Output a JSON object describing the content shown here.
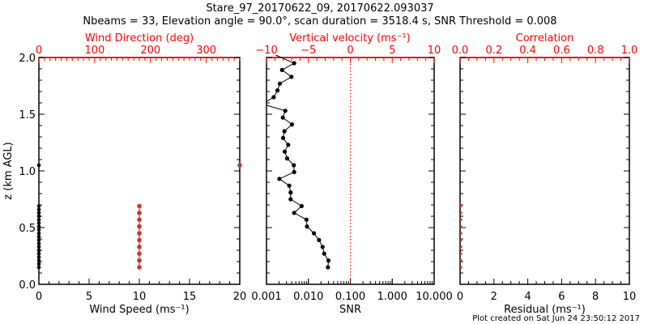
{
  "title": "Stare_97_20170622_09, 20170622.093037",
  "subtitle": "Nbeams = 33, Elevation angle = 90.0°, scan duration = 3518.4 s, SNR Threshold = 0.008",
  "footer": "Plot created on Sat Jun 24 23:50:12 2017",
  "colors": {
    "red": "#ff0000",
    "marker_red": "#c0392b",
    "black": "#000000"
  },
  "chart_data": [
    {
      "type": "scatter",
      "panel": "wind",
      "ylabel": "z (km AGL)",
      "ylim": [
        0,
        2
      ],
      "yticks": [
        "0.0",
        "0.5",
        "1.0",
        "1.5",
        "2.0"
      ],
      "xlabel": "Wind Speed (ms⁻¹)",
      "xlim": [
        0,
        20
      ],
      "xticks": [
        "0",
        "5",
        "10",
        "15",
        "20"
      ],
      "x2label": "Wind Direction (deg)",
      "x2lim": [
        0,
        360
      ],
      "x2ticks": [
        "0",
        "100",
        "200",
        "300"
      ],
      "series": [
        {
          "name": "Wind Speed",
          "color": "#000000",
          "z": [
            0.15,
            0.18,
            0.21,
            0.24,
            0.27,
            0.3,
            0.33,
            0.36,
            0.39,
            0.42,
            0.45,
            0.48,
            0.51,
            0.54,
            0.57,
            0.6,
            0.63,
            0.66,
            0.69,
            1.05
          ],
          "values": [
            0,
            0,
            0,
            0,
            0,
            0,
            0,
            0,
            0,
            0,
            0,
            0,
            0,
            0,
            0,
            0,
            0,
            0,
            0,
            0
          ]
        },
        {
          "name": "Wind Direction",
          "color": "#c0392b",
          "z": [
            0.15,
            0.21,
            0.27,
            0.33,
            0.39,
            0.45,
            0.51,
            0.57,
            0.63,
            0.69,
            1.05
          ],
          "values": [
            180,
            180,
            180,
            180,
            180,
            180,
            180,
            180,
            180,
            180,
            360
          ]
        }
      ]
    },
    {
      "type": "line",
      "panel": "velocity",
      "xlabel": "SNR",
      "xlim_log": [
        0.001,
        10
      ],
      "xticks": [
        "0.001",
        "0.010",
        "0.100",
        "1.000",
        "10.000"
      ],
      "x2label": "Vertical velocity (ms⁻¹)",
      "x2lim": [
        -10,
        10
      ],
      "x2ticks": [
        "−10",
        "−5",
        "0",
        "5",
        "10"
      ],
      "ylim": [
        0,
        2
      ],
      "zero_line": 0,
      "series": [
        {
          "name": "Vertical velocity",
          "color": "#000000",
          "z": [
            0.15,
            0.21,
            0.27,
            0.33,
            0.39,
            0.45,
            0.51,
            0.57,
            0.63,
            0.69,
            0.75,
            0.81,
            0.87,
            0.93,
            0.99,
            1.05,
            1.11,
            1.17,
            1.23,
            1.29,
            1.35,
            1.41,
            1.47,
            1.53,
            1.59,
            1.65,
            1.71,
            1.77,
            1.83,
            1.89,
            1.95
          ],
          "values": [
            -2.67,
            -2.61,
            -3.12,
            -3.31,
            -3.73,
            -4.34,
            -5.17,
            -5.23,
            -6.7,
            -5.81,
            -7.12,
            -7.12,
            -7.28,
            -8.46,
            -6.7,
            -6.74,
            -7.54,
            -7.82,
            -7.41,
            -8.02,
            -7.86,
            -6.96,
            -8.05,
            -7.76,
            -10.5,
            -9.14,
            -8.69,
            -8.4,
            -7.02,
            -8.14,
            -6.7
          ]
        }
      ]
    },
    {
      "type": "scatter",
      "panel": "residual",
      "xlabel": "Residual (ms⁻¹)",
      "xlim": [
        0,
        10
      ],
      "xticks": [
        "0",
        "2",
        "4",
        "6",
        "8",
        "10"
      ],
      "x2label": "Correlation",
      "x2lim": [
        0,
        1
      ],
      "x2ticks": [
        "0.0",
        "0.2",
        "0.4",
        "0.6",
        "0.8",
        "1.0"
      ],
      "ylim": [
        0,
        2
      ],
      "series": [
        {
          "name": "Residual",
          "color": "#c0392b",
          "z": [
            0.15,
            0.21,
            0.27,
            0.33,
            0.39,
            0.45,
            0.51,
            0.57,
            0.63,
            0.69
          ],
          "values": [
            0,
            0,
            0,
            0,
            0,
            0,
            0,
            0,
            0,
            0
          ]
        }
      ]
    }
  ]
}
